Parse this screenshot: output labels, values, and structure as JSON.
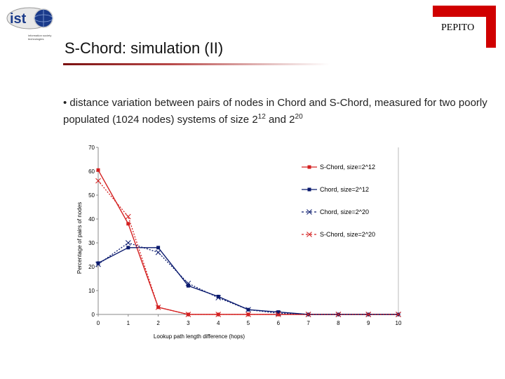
{
  "header": {
    "logo_text": "ist",
    "logo_subtext": "information society technologies",
    "project": "PEPITO"
  },
  "slide": {
    "title": "S-Chord: simulation (II)",
    "bullet_prefix": "• distance variation between pairs of nodes in Chord and S-Chord, measured for two poorly populated (1024 nodes) systems of size 2",
    "exp1": "12",
    "bullet_mid": " and 2",
    "exp2": "20"
  },
  "colors": {
    "red": "#d42020",
    "navy": "#0a1a6e",
    "accent": "#d00000"
  },
  "chart_data": {
    "type": "line",
    "xlabel": "Lookup path length difference (hops)",
    "ylabel": "Percentage of pairs of nodes",
    "x": [
      0,
      1,
      2,
      3,
      4,
      5,
      6,
      7,
      8,
      9,
      10
    ],
    "xlim": [
      0,
      10
    ],
    "ylim": [
      0,
      70
    ],
    "yticks": [
      0,
      10,
      20,
      30,
      40,
      50,
      60,
      70
    ],
    "grid": false,
    "legend_position": "right",
    "series": [
      {
        "name": "S-Chord, size=2^12",
        "color": "#d42020",
        "marker": "square",
        "dash": "solid",
        "values": [
          60.5,
          38,
          3,
          0,
          0,
          0,
          0,
          0,
          0,
          0,
          0
        ]
      },
      {
        "name": "Chord, size=2^12",
        "color": "#0a1a6e",
        "marker": "square",
        "dash": "solid",
        "values": [
          21.5,
          28,
          28,
          12,
          7.5,
          2,
          1,
          0,
          0,
          0,
          0
        ]
      },
      {
        "name": "Chord, size=2^20",
        "color": "#0a1a6e",
        "marker": "x",
        "dash": "dotted",
        "values": [
          21,
          30,
          26,
          13,
          7,
          2,
          0.5,
          0,
          0,
          0,
          0
        ]
      },
      {
        "name": "S-Chord, size=2^20",
        "color": "#d42020",
        "marker": "x",
        "dash": "dotted",
        "values": [
          56,
          41,
          3,
          0,
          0,
          0,
          0,
          0,
          0,
          0,
          0
        ]
      }
    ]
  }
}
